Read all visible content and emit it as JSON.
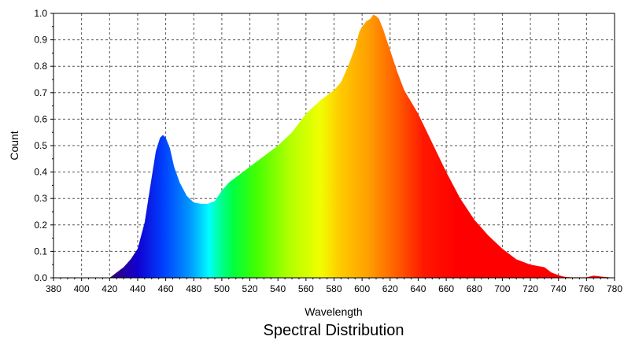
{
  "chart_data": {
    "type": "area",
    "title": "Spectral Distribution",
    "xlabel": "Wavelength",
    "ylabel": "Count",
    "xlim": [
      380,
      780
    ],
    "ylim": [
      0,
      1.0
    ],
    "grid": true,
    "x_ticks": [
      380,
      400,
      420,
      440,
      460,
      480,
      500,
      520,
      540,
      560,
      580,
      600,
      620,
      640,
      660,
      680,
      700,
      720,
      740,
      760,
      780
    ],
    "x_tick_labels": [
      "380",
      "400",
      "420",
      "440",
      "460",
      "480",
      "500",
      "520",
      "540",
      "560",
      "580",
      "600",
      "620",
      "640",
      "660",
      "680",
      "700",
      "720",
      "740",
      "760",
      "780"
    ],
    "y_ticks": [
      0,
      0.1,
      0.2,
      0.3,
      0.4,
      0.5,
      0.6,
      0.7,
      0.8,
      0.9,
      1.0
    ],
    "y_tick_labels": [
      "0.0",
      "0.1",
      "0.2",
      "0.3",
      "0.4",
      "0.5",
      "0.6",
      "0.7",
      "0.8",
      "0.9",
      "1.0"
    ],
    "series": [
      {
        "x": [
          380,
          420,
          425,
          430,
          435,
          440,
          445,
          450,
          453,
          456,
          458,
          460,
          463,
          466,
          470,
          475,
          480,
          485,
          490,
          495,
          500,
          505,
          510,
          515,
          520,
          530,
          540,
          550,
          560,
          570,
          580,
          585,
          590,
          595,
          598,
          600,
          603,
          606,
          608,
          610,
          612,
          615,
          620,
          625,
          630,
          640,
          650,
          660,
          670,
          680,
          690,
          700,
          710,
          720,
          725,
          730,
          735,
          740,
          745,
          750,
          760,
          765,
          770,
          780
        ],
        "values": [
          0.0,
          0.0,
          0.02,
          0.04,
          0.07,
          0.11,
          0.21,
          0.38,
          0.48,
          0.53,
          0.54,
          0.53,
          0.49,
          0.42,
          0.36,
          0.31,
          0.285,
          0.28,
          0.28,
          0.29,
          0.33,
          0.36,
          0.38,
          0.4,
          0.42,
          0.46,
          0.5,
          0.55,
          0.62,
          0.67,
          0.71,
          0.74,
          0.8,
          0.87,
          0.93,
          0.95,
          0.97,
          0.98,
          0.995,
          0.99,
          0.98,
          0.94,
          0.86,
          0.78,
          0.71,
          0.62,
          0.51,
          0.4,
          0.3,
          0.22,
          0.16,
          0.11,
          0.07,
          0.05,
          0.045,
          0.04,
          0.02,
          0.01,
          0.003,
          0.002,
          0.002,
          0.008,
          0.005,
          0.0
        ]
      }
    ]
  }
}
